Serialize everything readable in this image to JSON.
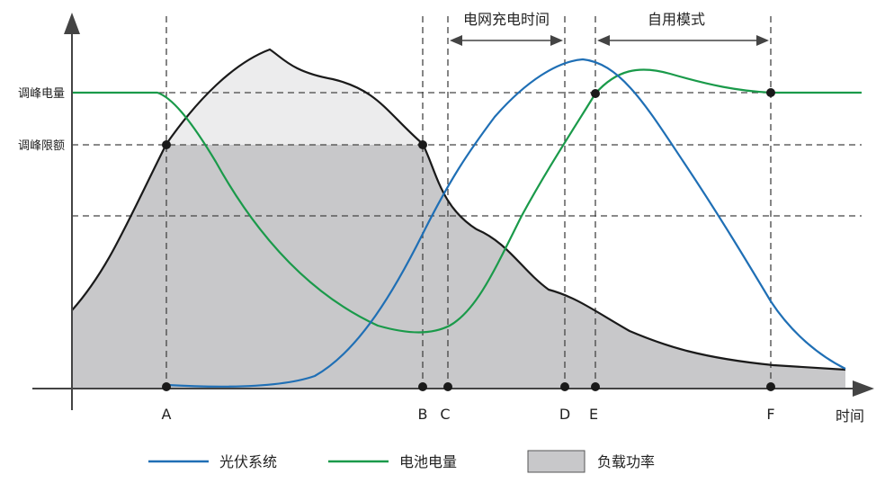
{
  "y_axis_labels": {
    "peak_charge": "调峰电量",
    "peak_limit": "调峰限额"
  },
  "x_axis_label": "时间",
  "points": [
    "A",
    "B",
    "C",
    "D",
    "E",
    "F"
  ],
  "intervals": {
    "grid_charge": "电网充电时间",
    "self_use": "自用模式"
  },
  "legend": {
    "pv": "光伏系统",
    "battery": "电池电量",
    "load": "负载功率"
  },
  "colors": {
    "pv": "#1f6fb5",
    "battery": "#1a9a4a",
    "load_fill": "#c8c8ca",
    "load_above_limit": "#ececed",
    "load_line": "#1a1a1a",
    "axis": "#444444",
    "dash": "#444444",
    "marker": "#1a1a1a"
  }
}
